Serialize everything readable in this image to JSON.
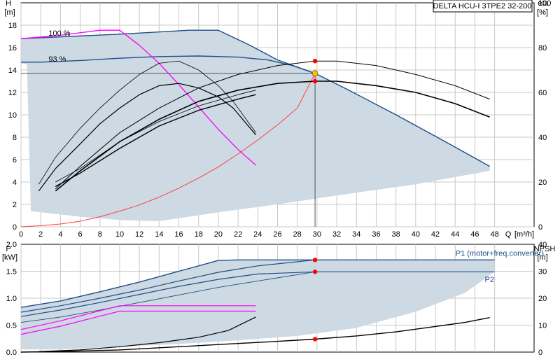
{
  "chart_data": [
    {
      "type": "line",
      "title": "DELTA HCU-I 3TPE2 32-200",
      "ylabel": "H",
      "yunit": "[m]",
      "y2label": "eta",
      "y2unit": "[%]",
      "xlabel": "Q",
      "xunit": "[m³/h]",
      "xlim": [
        0,
        52
      ],
      "ylim": [
        0,
        20
      ],
      "y2lim": [
        0,
        100
      ],
      "grid": true,
      "x_ticks": [
        0,
        2,
        4,
        6,
        8,
        10,
        12,
        14,
        16,
        18,
        20,
        22,
        24,
        26,
        28,
        30,
        32,
        34,
        36,
        38,
        40,
        42,
        44,
        46,
        48
      ],
      "y_ticks": [
        0,
        2,
        4,
        6,
        8,
        10,
        12,
        14,
        16,
        18
      ],
      "y2_ticks": [
        0,
        20,
        40,
        60,
        80,
        100
      ],
      "operating_point": {
        "Q": 29.8,
        "H": 13.7,
        "eta_upper": 74,
        "eta_lower": 65
      },
      "colors": {
        "region": "#cdd9e3",
        "head_curve": "#1f4e89",
        "speed_limit": "#ff00ff",
        "system_curve": "#ff4040",
        "efficiency": "#000000",
        "op_point": "#ffc000",
        "marker": "#ff0000"
      },
      "annotations": [
        {
          "text": "100 %",
          "x": 1.8,
          "y": 17.3
        },
        {
          "text": "93 %",
          "x": 1.8,
          "y": 15.0
        }
      ],
      "series": [
        {
          "role": "head-100",
          "x": [
            0,
            10,
            17,
            20,
            23,
            26,
            29.8,
            33,
            38,
            43,
            47.5
          ],
          "y": [
            16.8,
            17.2,
            17.55,
            17.55,
            16.3,
            14.9,
            13.7,
            12.3,
            10.0,
            7.6,
            5.4
          ]
        },
        {
          "role": "head-93",
          "x": [
            0,
            2,
            6,
            10,
            14,
            18,
            22,
            25,
            27.5,
            29.8
          ],
          "y": [
            14.7,
            14.7,
            14.85,
            15.05,
            15.2,
            15.25,
            15.15,
            14.9,
            14.4,
            13.7
          ]
        },
        {
          "role": "speed-limit",
          "x": [
            0,
            4,
            8,
            10,
            12,
            14,
            16,
            18,
            20,
            22,
            23.8
          ],
          "y": [
            16.8,
            17.1,
            17.55,
            17.55,
            16.2,
            14.6,
            12.7,
            10.7,
            8.7,
            6.9,
            5.5
          ]
        },
        {
          "role": "system-curve",
          "x": [
            0,
            2,
            4,
            6,
            8,
            10,
            12,
            14,
            16,
            18,
            20,
            22,
            24,
            26,
            28,
            29.8
          ],
          "y": [
            0,
            0.1,
            0.25,
            0.5,
            0.9,
            1.4,
            1.95,
            2.65,
            3.45,
            4.35,
            5.35,
            6.5,
            7.75,
            9.1,
            10.6,
            13.7
          ]
        },
        {
          "role": "eta-curve-1",
          "axis": "y2",
          "x": [
            1.8,
            3.5,
            6,
            8,
            10,
            12,
            14,
            16,
            18,
            20,
            21.5,
            23.8
          ],
          "y": [
            19,
            31,
            44,
            53,
            61,
            68,
            73,
            74,
            70,
            63,
            56,
            42
          ]
        },
        {
          "role": "eta-curve-2",
          "axis": "y2",
          "x": [
            1.8,
            3.5,
            6,
            8,
            10,
            12,
            14,
            16,
            18,
            20,
            21.5,
            23.8
          ],
          "y": [
            16,
            26,
            37,
            46,
            53,
            59,
            63,
            64,
            62,
            58,
            53,
            41
          ]
        },
        {
          "role": "eta-curve-3",
          "axis": "y2",
          "x": [
            3.5,
            6,
            10,
            14,
            18,
            22,
            23.8
          ],
          "y": [
            20,
            26,
            38,
            47,
            54,
            59,
            61
          ]
        },
        {
          "role": "eta-curve-4",
          "axis": "y2",
          "x": [
            3.5,
            6,
            10,
            14,
            18,
            22,
            23.8
          ],
          "y": [
            18,
            24,
            35,
            45,
            52,
            57,
            59
          ]
        },
        {
          "role": "eta-100",
          "axis": "y2",
          "x": [
            3.5,
            6,
            10,
            14,
            18,
            22,
            26,
            29.8,
            32,
            36,
            40,
            44,
            47.5
          ],
          "y": [
            17,
            27,
            42,
            53,
            62,
            68,
            72,
            74,
            74,
            72,
            68,
            63,
            57
          ]
        },
        {
          "role": "eta-93",
          "axis": "y2",
          "x": [
            3.5,
            6,
            10,
            14,
            18,
            22,
            26,
            29.8,
            32,
            36,
            40,
            44,
            47.5
          ],
          "y": [
            16,
            25,
            38,
            48,
            56,
            61,
            64,
            65,
            65,
            63,
            60,
            55,
            49
          ]
        }
      ]
    },
    {
      "type": "line",
      "ylabel": "P",
      "yunit": "[kW]",
      "y2label": "NPSH",
      "y2unit": "[m]",
      "xlim": [
        0,
        52
      ],
      "ylim": [
        0,
        2.0
      ],
      "y2lim": [
        0,
        40
      ],
      "grid": true,
      "y_ticks": [
        0.0,
        0.5,
        1.0,
        1.5,
        2.0
      ],
      "y_tick_labels": [
        "0.0",
        "0.5",
        "1.0",
        "1.5",
        "2.0"
      ],
      "y2_ticks": [
        0,
        10,
        20,
        30,
        40
      ],
      "operating_point": {
        "Q": 29.8,
        "P1": 1.71,
        "P2": 1.49,
        "NPSH": 0.24
      },
      "annotations": [
        {
          "text": "P1 (motor+freq.converter)",
          "x": 43.7,
          "y": 1.84
        },
        {
          "text": "P2",
          "x": 47.0,
          "y": 1.35
        }
      ],
      "series": [
        {
          "role": "p1-envelope",
          "x": [
            0,
            4,
            8,
            12,
            16,
            20,
            22,
            29.8,
            48
          ],
          "y": [
            0.83,
            0.95,
            1.12,
            1.3,
            1.5,
            1.7,
            1.71,
            1.71,
            1.71
          ]
        },
        {
          "role": "p1-93",
          "x": [
            0,
            4,
            8,
            12,
            16,
            20,
            24,
            29.8
          ],
          "y": [
            0.74,
            0.86,
            1.0,
            1.15,
            1.32,
            1.48,
            1.6,
            1.71
          ]
        },
        {
          "role": "p2-100",
          "x": [
            0,
            4,
            8,
            12,
            16,
            20,
            24,
            29.8,
            48
          ],
          "y": [
            0.66,
            0.78,
            0.92,
            1.07,
            1.22,
            1.35,
            1.45,
            1.49,
            1.49
          ]
        },
        {
          "role": "p2-93",
          "x": [
            0,
            4,
            8,
            12,
            16,
            20,
            24,
            29.8
          ],
          "y": [
            0.55,
            0.65,
            0.78,
            0.92,
            1.06,
            1.2,
            1.32,
            1.49
          ]
        },
        {
          "role": "p1-speed-limit",
          "x": [
            0,
            4,
            10,
            23.8
          ],
          "y": [
            0.42,
            0.58,
            0.86,
            0.86
          ]
        },
        {
          "role": "p2-speed-limit",
          "x": [
            0,
            4,
            10,
            23.8
          ],
          "y": [
            0.33,
            0.48,
            0.76,
            0.76
          ]
        },
        {
          "role": "npsh-curve-1",
          "axis": "y2",
          "x": [
            1.8,
            6,
            10,
            14,
            18,
            21,
            23.8
          ],
          "y": [
            0.2,
            0.8,
            2.0,
            3.5,
            5.5,
            8.0,
            13.0
          ]
        },
        {
          "role": "npsh-100",
          "axis": "y2",
          "x": [
            0,
            5,
            10,
            15,
            20,
            25,
            29.8,
            34,
            38,
            42,
            45,
            47.5
          ],
          "y": [
            0,
            0.3,
            0.8,
            1.8,
            2.8,
            3.8,
            4.8,
            6.0,
            7.5,
            9.5,
            11.0,
            12.8
          ]
        }
      ]
    }
  ]
}
